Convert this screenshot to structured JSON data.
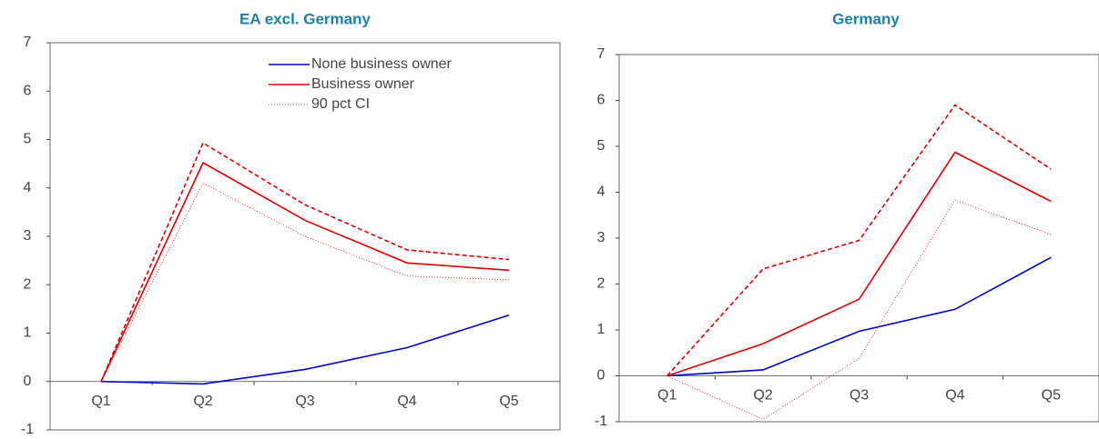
{
  "chart_data": [
    {
      "type": "line",
      "title": "EA excl. Germany",
      "categories": [
        "Q1",
        "Q2",
        "Q3",
        "Q4",
        "Q5"
      ],
      "ylim": [
        -1,
        7
      ],
      "yticks": [
        -1,
        0,
        1,
        2,
        3,
        4,
        5,
        6,
        7
      ],
      "legend": "upper-right",
      "series": [
        {
          "name": "None business owner",
          "color": "#0000cc",
          "line_style": "solid",
          "values": [
            0,
            -0.05,
            0.25,
            0.7,
            1.37
          ]
        },
        {
          "name": "Business owner",
          "color": "#e00000",
          "line_style": "solid",
          "values": [
            0,
            4.52,
            3.33,
            2.45,
            2.3
          ]
        },
        {
          "color": "#e00000",
          "line_style": "dashed",
          "values": [
            0,
            4.93,
            3.65,
            2.72,
            2.52
          ]
        },
        {
          "name": "90 pct CI",
          "color": "#e00000",
          "line_style": "dotted",
          "values": [
            0,
            4.1,
            3.0,
            2.18,
            2.1
          ]
        }
      ]
    },
    {
      "type": "line",
      "title": "Germany",
      "categories": [
        "Q1",
        "Q2",
        "Q3",
        "Q4",
        "Q5"
      ],
      "ylim": [
        -1,
        7
      ],
      "yticks": [
        -1,
        0,
        1,
        2,
        3,
        4,
        5,
        6,
        7
      ],
      "series": [
        {
          "color": "#0000cc",
          "line_style": "solid",
          "values": [
            0,
            0.13,
            0.97,
            1.45,
            2.58
          ]
        },
        {
          "color": "#e00000",
          "line_style": "solid",
          "values": [
            0,
            0.7,
            1.67,
            4.87,
            3.8
          ]
        },
        {
          "color": "#e00000",
          "line_style": "dashed",
          "values": [
            0,
            2.33,
            2.95,
            5.9,
            4.5
          ]
        },
        {
          "color": "#e00000",
          "line_style": "dotted",
          "values": [
            0,
            -0.95,
            0.38,
            3.83,
            3.08
          ]
        }
      ]
    }
  ]
}
